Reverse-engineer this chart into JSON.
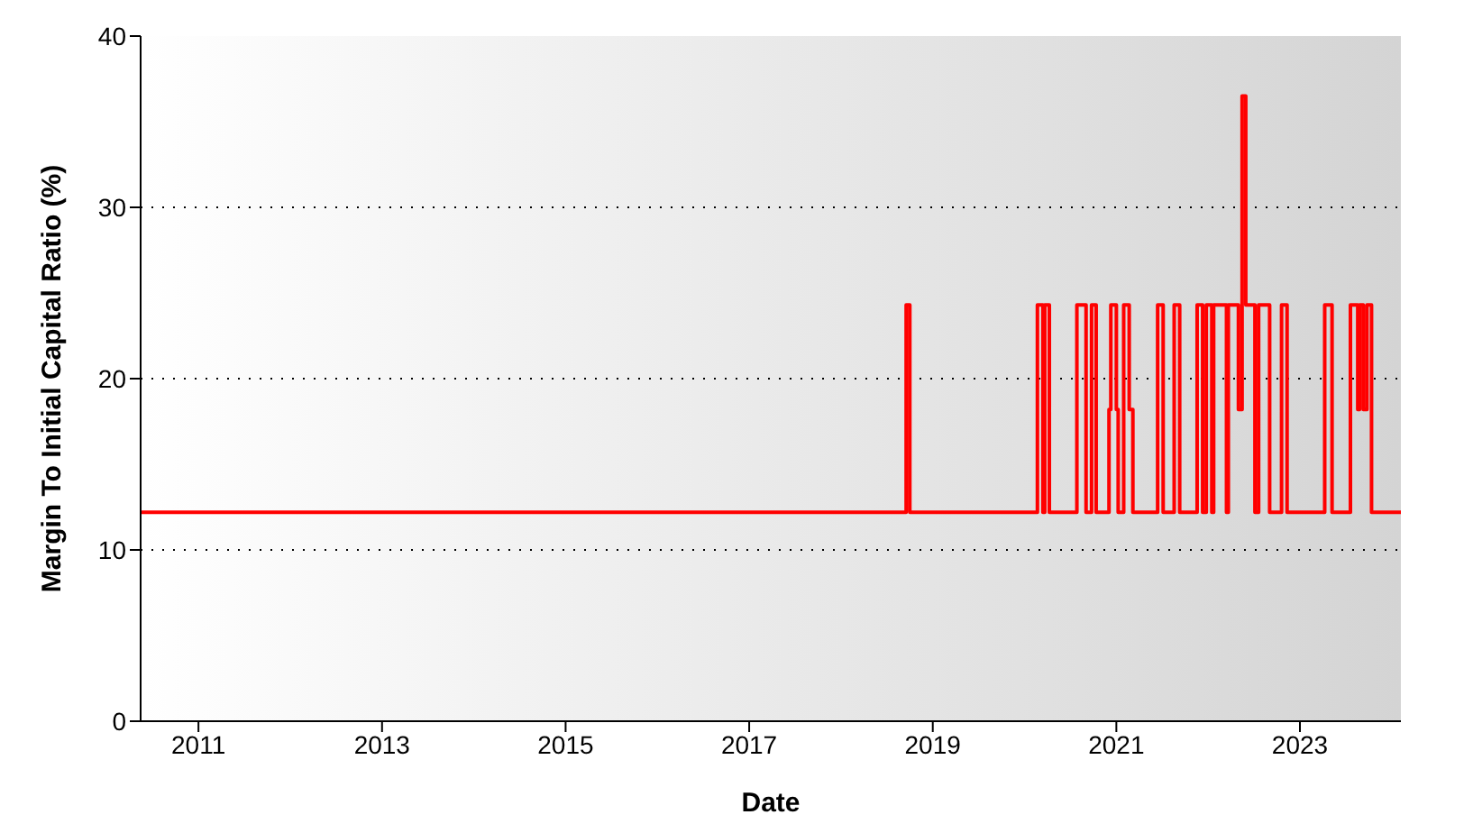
{
  "chart_data": {
    "type": "step",
    "xlabel": "Date",
    "ylabel": "Margin To Initial Capital Ratio (%)",
    "x": [
      2010.37,
      2018.71,
      2018.75,
      2020.14,
      2020.2,
      2020.22,
      2020.27,
      2020.57,
      2020.67,
      2020.73,
      2020.78,
      2020.92,
      2020.94,
      2021.0,
      2021.02,
      2021.08,
      2021.14,
      2021.18,
      2021.45,
      2021.51,
      2021.63,
      2021.69,
      2021.88,
      2021.94,
      2021.98,
      2022.04,
      2022.06,
      2022.2,
      2022.22,
      2022.33,
      2022.37,
      2022.41,
      2022.51,
      2022.55,
      2022.67,
      2022.8,
      2022.86,
      2023.27,
      2023.35,
      2023.55,
      2023.63,
      2023.65,
      2023.69,
      2023.73,
      2023.78,
      2024.1
    ],
    "series": [
      {
        "color": "#ff0000",
        "values": [
          12.2,
          24.3,
          12.2,
          24.3,
          12.2,
          24.3,
          12.2,
          24.3,
          12.2,
          24.3,
          12.2,
          18.2,
          24.3,
          18.2,
          12.2,
          24.3,
          18.2,
          12.2,
          24.3,
          12.2,
          24.3,
          12.2,
          24.3,
          12.2,
          24.3,
          12.2,
          24.3,
          12.2,
          24.3,
          18.2,
          36.5,
          24.3,
          12.2,
          24.3,
          12.2,
          24.3,
          12.2,
          24.3,
          12.2,
          24.3,
          18.2,
          24.3,
          18.2,
          24.3,
          12.2,
          12.2
        ]
      }
    ],
    "xlim": [
      2010.37,
      2024.1
    ],
    "xticks": [
      2011,
      2013,
      2015,
      2017,
      2019,
      2021,
      2023
    ],
    "ylim": [
      0,
      40
    ],
    "yticks": [
      0,
      10,
      20,
      30,
      40
    ],
    "grid": "y",
    "legend": false,
    "line_style": "solid",
    "marker": "none"
  }
}
